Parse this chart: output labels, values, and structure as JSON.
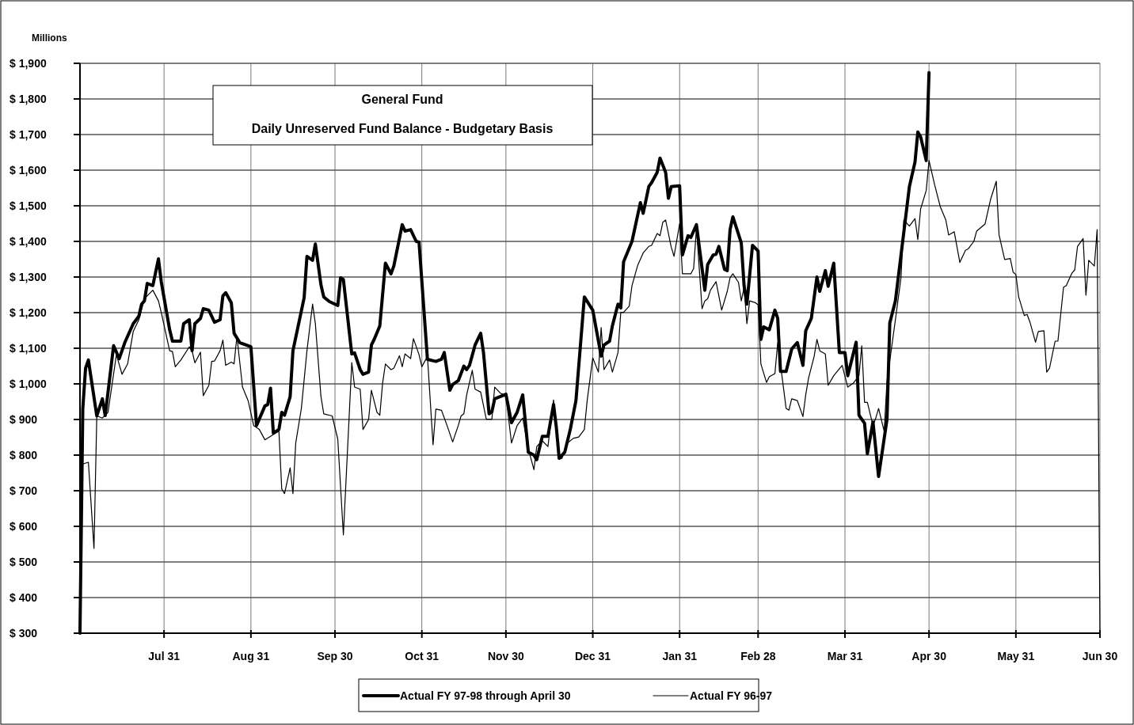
{
  "chart_data": {
    "type": "line",
    "title": "General Fund",
    "subtitle": "Daily Unreserved Fund Balance - Budgetary Basis",
    "ylabel": "Millions",
    "xlim": [
      "1997-07-01",
      "1998-06-30"
    ],
    "xticks": [
      {
        "value": "1997-07-31",
        "label": "Jul 31"
      },
      {
        "value": "1997-08-31",
        "label": "Aug 31"
      },
      {
        "value": "1997-09-30",
        "label": "Sep 30"
      },
      {
        "value": "1997-10-31",
        "label": "Oct 31"
      },
      {
        "value": "1997-11-30",
        "label": "Nov 30"
      },
      {
        "value": "1997-12-31",
        "label": "Dec 31"
      },
      {
        "value": "1998-01-31",
        "label": "Jan 31"
      },
      {
        "value": "1998-02-28",
        "label": "Feb 28"
      },
      {
        "value": "1998-03-31",
        "label": "Mar 31"
      },
      {
        "value": "1998-04-30",
        "label": "Apr 30"
      },
      {
        "value": "1998-05-31",
        "label": "May 31"
      },
      {
        "value": "1998-06-30",
        "label": "Jun 30"
      }
    ],
    "ylim": [
      300,
      1900
    ],
    "yticks": [
      {
        "value": 300,
        "label": "$ 300"
      },
      {
        "value": 400,
        "label": "$ 400"
      },
      {
        "value": 500,
        "label": "$ 500"
      },
      {
        "value": 600,
        "label": "$ 600"
      },
      {
        "value": 700,
        "label": "$ 700"
      },
      {
        "value": 800,
        "label": "$ 800"
      },
      {
        "value": 900,
        "label": "$ 900"
      },
      {
        "value": 1000,
        "label": "$ 1,000"
      },
      {
        "value": 1100,
        "label": "$ 1,100"
      },
      {
        "value": 1200,
        "label": "$ 1,200"
      },
      {
        "value": 1300,
        "label": "$ 1,300"
      },
      {
        "value": 1400,
        "label": "$ 1,400"
      },
      {
        "value": 1500,
        "label": "$ 1,500"
      },
      {
        "value": 1600,
        "label": "$ 1,600"
      },
      {
        "value": 1700,
        "label": "$ 1,700"
      },
      {
        "value": 1800,
        "label": "$ 1,800"
      },
      {
        "value": 1900,
        "label": "$ 1,900"
      }
    ],
    "grid": true,
    "legend": "bottom",
    "marker": "none",
    "line_style": "solid",
    "series": [
      {
        "name": "Actual FY 97-98 through April 30",
        "color": "#000000",
        "x": [
          "1997-07-01",
          "1997-07-02",
          "1997-07-03",
          "1997-07-04",
          "1997-07-07",
          "1997-07-09",
          "1997-07-10",
          "1997-07-13",
          "1997-07-15",
          "1997-07-17",
          "1997-07-20",
          "1997-07-22",
          "1997-07-23",
          "1997-07-24",
          "1997-07-25",
          "1997-07-27",
          "1997-07-29",
          "1997-07-30",
          "1997-08-02",
          "1997-08-03",
          "1997-08-06",
          "1997-08-07",
          "1997-08-09",
          "1997-08-10",
          "1997-08-11",
          "1997-08-13",
          "1997-08-14",
          "1997-08-16",
          "1997-08-18",
          "1997-08-20",
          "1997-08-21",
          "1997-08-22",
          "1997-08-24",
          "1997-08-25",
          "1997-08-27",
          "1997-08-31",
          "1997-09-02",
          "1997-09-05",
          "1997-09-06",
          "1997-09-07",
          "1997-09-08",
          "1997-09-10",
          "1997-09-11",
          "1997-09-12",
          "1997-09-14",
          "1997-09-15",
          "1997-09-19",
          "1997-09-20",
          "1997-09-22",
          "1997-09-23",
          "1997-09-25",
          "1997-09-26",
          "1997-09-28",
          "1997-10-01",
          "1997-10-02",
          "1997-10-03",
          "1997-10-06",
          "1997-10-07",
          "1997-10-09",
          "1997-10-10",
          "1997-10-12",
          "1997-10-13",
          "1997-10-14",
          "1997-10-16",
          "1997-10-18",
          "1997-10-20",
          "1997-10-21",
          "1997-10-24",
          "1997-10-25",
          "1997-10-27",
          "1997-10-29",
          "1997-10-30",
          "1997-11-02",
          "1997-11-05",
          "1997-11-07",
          "1997-11-08",
          "1997-11-10",
          "1997-11-11",
          "1997-11-13",
          "1997-11-15",
          "1997-11-16",
          "1997-11-17",
          "1997-11-19",
          "1997-11-21",
          "1997-11-22",
          "1997-11-24",
          "1997-11-25",
          "1997-11-26",
          "1997-11-30",
          "1997-12-02",
          "1997-12-04",
          "1997-12-06",
          "1997-12-08",
          "1997-12-10",
          "1997-12-11",
          "1997-12-13",
          "1997-12-15",
          "1997-12-17",
          "1997-12-18",
          "1997-12-19",
          "1997-12-21",
          "1997-12-23",
          "1997-12-25",
          "1997-12-28",
          "1997-12-31",
          "1998-01-03",
          "1998-01-04",
          "1998-01-06",
          "1998-01-07",
          "1998-01-09",
          "1998-01-10",
          "1998-01-11",
          "1998-01-14",
          "1998-01-17",
          "1998-01-18",
          "1998-01-20",
          "1998-01-21",
          "1998-01-23",
          "1998-01-24",
          "1998-01-26",
          "1998-01-27",
          "1998-01-28",
          "1998-01-31",
          "1998-02-01",
          "1998-02-03",
          "1998-02-04",
          "1998-02-06",
          "1998-02-09",
          "1998-02-10",
          "1998-02-12",
          "1998-02-13",
          "1998-02-14",
          "1998-02-16",
          "1998-02-17",
          "1998-02-18",
          "1998-02-19",
          "1998-02-22",
          "1998-02-23",
          "1998-02-24",
          "1998-02-26",
          "1998-02-28",
          "1998-03-01",
          "1998-03-02",
          "1998-03-04",
          "1998-03-06",
          "1998-03-07",
          "1998-03-08",
          "1998-03-10",
          "1998-03-12",
          "1998-03-14",
          "1998-03-16",
          "1998-03-17",
          "1998-03-19",
          "1998-03-21",
          "1998-03-22",
          "1998-03-24",
          "1998-03-25",
          "1998-03-27",
          "1998-03-29",
          "1998-03-31",
          "1998-04-01",
          "1998-04-04",
          "1998-04-05",
          "1998-04-07",
          "1998-04-08",
          "1998-04-10",
          "1998-04-12",
          "1998-04-15",
          "1998-04-16",
          "1998-04-18",
          "1998-04-23",
          "1998-04-25",
          "1998-04-26",
          "1998-04-27",
          "1998-04-29",
          "1998-04-30"
        ],
        "values": [
          300,
          930,
          1044,
          1067,
          910,
          958,
          911,
          1107,
          1071,
          1116,
          1169,
          1190,
          1224,
          1233,
          1282,
          1276,
          1351,
          1287,
          1152,
          1120,
          1120,
          1169,
          1180,
          1093,
          1169,
          1184,
          1211,
          1207,
          1173,
          1180,
          1247,
          1256,
          1228,
          1142,
          1116,
          1104,
          883,
          938,
          942,
          988,
          862,
          872,
          920,
          912,
          964,
          1093,
          1242,
          1358,
          1347,
          1393,
          1278,
          1244,
          1231,
          1220,
          1298,
          1293,
          1084,
          1087,
          1040,
          1027,
          1033,
          1109,
          1125,
          1163,
          1339,
          1309,
          1331,
          1447,
          1429,
          1433,
          1400,
          1398,
          1069,
          1063,
          1069,
          1088,
          982,
          998,
          1009,
          1050,
          1040,
          1052,
          1109,
          1142,
          1088,
          916,
          922,
          958,
          971,
          891,
          920,
          969,
          808,
          800,
          787,
          853,
          853,
          942,
          878,
          791,
          808,
          873,
          953,
          1244,
          1207,
          1078,
          1109,
          1120,
          1163,
          1224,
          1213,
          1343,
          1400,
          1509,
          1479,
          1554,
          1565,
          1594,
          1634,
          1594,
          1521,
          1554,
          1556,
          1362,
          1416,
          1411,
          1447,
          1263,
          1335,
          1362,
          1364,
          1386,
          1322,
          1318,
          1433,
          1469,
          1396,
          1276,
          1224,
          1389,
          1373,
          1125,
          1160,
          1152,
          1207,
          1184,
          1035,
          1035,
          1098,
          1116,
          1052,
          1149,
          1184,
          1300,
          1260,
          1318,
          1274,
          1339,
          1088,
          1088,
          1023,
          1117,
          912,
          889,
          804,
          893,
          740,
          900,
          1171,
          1233,
          1554,
          1623,
          1707,
          1694,
          1627,
          1874
        ]
      },
      {
        "name": "Actual FY 96-97",
        "color": "#000000",
        "x": [
          "1997-07-02",
          "1997-07-04",
          "1997-07-06",
          "1997-07-07",
          "1997-07-09",
          "1997-07-11",
          "1997-07-12",
          "1997-07-14",
          "1997-07-16",
          "1997-07-18",
          "1997-07-20",
          "1997-07-22",
          "1997-07-24",
          "1997-07-27",
          "1997-07-29",
          "1997-07-30",
          "1997-08-02",
          "1997-08-03",
          "1997-08-04",
          "1997-08-06",
          "1997-08-09",
          "1997-08-10",
          "1997-08-11",
          "1997-08-13",
          "1997-08-14",
          "1997-08-16",
          "1997-08-17",
          "1997-08-18",
          "1997-08-20",
          "1997-08-21",
          "1997-08-22",
          "1997-08-24",
          "1997-08-25",
          "1997-08-26",
          "1997-08-28",
          "1997-08-30",
          "1997-09-01",
          "1997-09-03",
          "1997-09-05",
          "1997-09-08",
          "1997-09-10",
          "1997-09-11",
          "1997-09-12",
          "1997-09-14",
          "1997-09-15",
          "1997-09-16",
          "1997-09-18",
          "1997-09-20",
          "1997-09-22",
          "1997-09-23",
          "1997-09-25",
          "1997-09-26",
          "1997-09-29",
          "1997-10-01",
          "1997-10-03",
          "1997-10-06",
          "1997-10-07",
          "1997-10-09",
          "1997-10-10",
          "1997-10-12",
          "1997-10-13",
          "1997-10-15",
          "1997-10-16",
          "1997-10-17",
          "1997-10-18",
          "1997-10-20",
          "1997-10-21",
          "1997-10-23",
          "1997-10-24",
          "1997-10-25",
          "1997-10-27",
          "1997-10-28",
          "1997-10-30",
          "1997-10-31",
          "1997-11-02",
          "1997-11-04",
          "1997-11-05",
          "1997-11-07",
          "1997-11-09",
          "1997-11-11",
          "1997-11-13",
          "1997-11-14",
          "1997-11-15",
          "1997-11-16",
          "1997-11-18",
          "1997-11-19",
          "1997-11-21",
          "1997-11-23",
          "1997-11-25",
          "1997-11-26",
          "1997-11-28",
          "1997-11-30",
          "1997-12-02",
          "1997-12-04",
          "1997-12-06",
          "1997-12-08",
          "1997-12-10",
          "1997-12-11",
          "1997-12-13",
          "1997-12-15",
          "1997-12-17",
          "1997-12-19",
          "1997-12-20",
          "1997-12-22",
          "1997-12-24",
          "1997-12-26",
          "1997-12-28",
          "1997-12-29",
          "1997-12-31",
          "1998-01-02",
          "1998-01-03",
          "1998-01-04",
          "1998-01-06",
          "1998-01-07",
          "1998-01-09",
          "1998-01-10",
          "1998-01-11",
          "1998-01-13",
          "1998-01-14",
          "1998-01-16",
          "1998-01-18",
          "1998-01-20",
          "1998-01-21",
          "1998-01-23",
          "1998-01-24",
          "1998-01-25",
          "1998-01-26",
          "1998-01-28",
          "1998-01-29",
          "1998-01-31",
          "1998-02-01",
          "1998-02-04",
          "1998-02-05",
          "1998-02-06",
          "1998-02-08",
          "1998-02-09",
          "1998-02-10",
          "1998-02-11",
          "1998-02-13",
          "1998-02-15",
          "1998-02-17",
          "1998-02-18",
          "1998-02-19",
          "1998-02-21",
          "1998-02-22",
          "1998-02-23",
          "1998-02-24",
          "1998-02-25",
          "1998-02-27",
          "1998-02-28",
          "1998-03-01",
          "1998-03-03",
          "1998-03-04",
          "1998-03-06",
          "1998-03-07",
          "1998-03-10",
          "1998-03-11",
          "1998-03-12",
          "1998-03-14",
          "1998-03-16",
          "1998-03-17",
          "1998-03-18",
          "1998-03-20",
          "1998-03-21",
          "1998-03-22",
          "1998-03-24",
          "1998-03-25",
          "1998-03-27",
          "1998-03-30",
          "1998-04-01",
          "1998-04-03",
          "1998-04-05",
          "1998-04-06",
          "1998-04-07",
          "1998-04-08",
          "1998-04-10",
          "1998-04-11",
          "1998-04-12",
          "1998-04-14",
          "1998-04-15",
          "1998-04-18",
          "1998-04-20",
          "1998-04-21",
          "1998-04-23",
          "1998-04-25",
          "1998-04-26",
          "1998-04-27",
          "1998-04-29",
          "1998-04-30",
          "1998-05-02",
          "1998-05-04",
          "1998-05-06",
          "1998-05-07",
          "1998-05-09",
          "1998-05-11",
          "1998-05-13",
          "1998-05-14",
          "1998-05-16",
          "1998-05-17",
          "1998-05-20",
          "1998-05-22",
          "1998-05-24",
          "1998-05-25",
          "1998-05-27",
          "1998-05-29",
          "1998-05-30",
          "1998-05-31",
          "1998-06-01",
          "1998-06-03",
          "1998-06-04",
          "1998-06-05",
          "1998-06-07",
          "1998-06-08",
          "1998-06-10",
          "1998-06-11",
          "1998-06-12",
          "1998-06-14",
          "1998-06-15",
          "1998-06-17",
          "1998-06-18",
          "1998-06-20",
          "1998-06-21",
          "1998-06-22",
          "1998-06-24",
          "1998-06-25",
          "1998-06-26",
          "1998-06-28",
          "1998-06-29",
          "1998-06-30"
        ],
        "values": [
          775,
          780,
          538,
          910,
          904,
          920,
          974,
          1082,
          1027,
          1056,
          1147,
          1180,
          1239,
          1263,
          1233,
          1201,
          1093,
          1091,
          1048,
          1067,
          1104,
          1093,
          1059,
          1089,
          967,
          996,
          1063,
          1064,
          1093,
          1123,
          1052,
          1061,
          1056,
          1134,
          991,
          953,
          883,
          872,
          843,
          858,
          867,
          705,
          692,
          764,
          692,
          834,
          931,
          1093,
          1224,
          1169,
          964,
          916,
          910,
          845,
          576,
          1060,
          991,
          985,
          872,
          900,
          982,
          920,
          912,
          1002,
          1056,
          1040,
          1044,
          1079,
          1048,
          1084,
          1071,
          1127,
          1082,
          1048,
          1077,
          829,
          929,
          926,
          883,
          837,
          883,
          910,
          916,
          969,
          1038,
          985,
          977,
          901,
          901,
          991,
          974,
          967,
          834,
          883,
          904,
          818,
          759,
          824,
          840,
          824,
          955,
          789,
          791,
          834,
          847,
          851,
          872,
          953,
          1073,
          1033,
          1158,
          1040,
          1067,
          1033,
          1088,
          1201,
          1201,
          1218,
          1276,
          1332,
          1368,
          1386,
          1389,
          1422,
          1416,
          1454,
          1460,
          1384,
          1358,
          1450,
          1309,
          1309,
          1324,
          1438,
          1211,
          1233,
          1239,
          1263,
          1287,
          1207,
          1260,
          1298,
          1309,
          1285,
          1233,
          1271,
          1169,
          1233,
          1228,
          1222,
          1056,
          1004,
          1020,
          1029,
          1116,
          931,
          926,
          958,
          953,
          908,
          969,
          1016,
          1077,
          1125,
          1093,
          1084,
          996,
          1023,
          1052,
          991,
          1002,
          1023,
          1107,
          948,
          948,
          883,
          904,
          931,
          867,
          1007,
          1180,
          1298,
          1460,
          1443,
          1464,
          1405,
          1491,
          1543,
          1627,
          1559,
          1498,
          1460,
          1418,
          1427,
          1341,
          1375,
          1379,
          1400,
          1429,
          1449,
          1519,
          1569,
          1418,
          1349,
          1352,
          1314,
          1307,
          1244,
          1192,
          1195,
          1174,
          1117,
          1147,
          1149,
          1033,
          1044,
          1120,
          1120,
          1271,
          1276,
          1311,
          1320,
          1386,
          1408,
          1249,
          1347,
          1331,
          1433,
          300
        ]
      }
    ]
  }
}
